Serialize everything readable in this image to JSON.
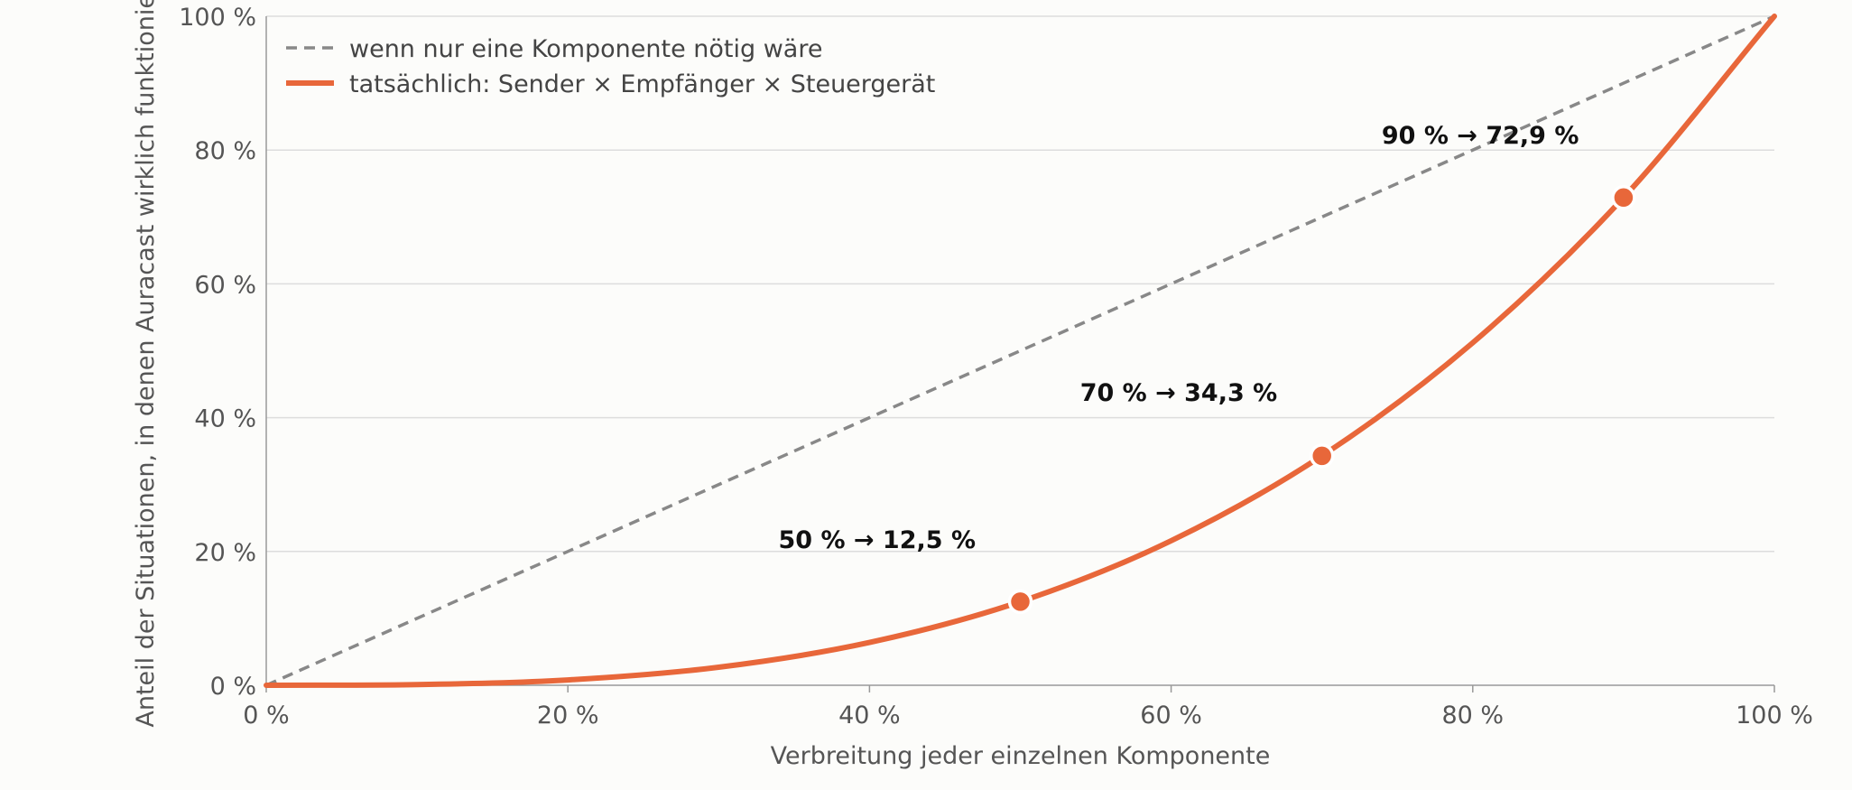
{
  "chart_data": {
    "type": "line",
    "title": "",
    "xlabel": "Verbreitung jeder einzelnen Komponente",
    "ylabel": "Anteil der Situationen, in denen Auracast wirklich funktioniert",
    "xlim": [
      0,
      100
    ],
    "ylim": [
      0,
      100
    ],
    "x_ticks": [
      0,
      20,
      40,
      60,
      80,
      100
    ],
    "y_ticks": [
      0,
      20,
      40,
      60,
      80,
      100
    ],
    "x_tick_labels": [
      "0 %",
      "20 %",
      "40 %",
      "60 %",
      "80 %",
      "100 %"
    ],
    "y_tick_labels": [
      "0 %",
      "20 %",
      "40 %",
      "60 %",
      "80 %",
      "100 %"
    ],
    "grid": "horizontal",
    "legend_position": "top-left",
    "series": [
      {
        "name": "wenn nur eine Komponente nötig wäre",
        "style": "dashed",
        "color": "#888888",
        "x": [
          0,
          100
        ],
        "y": [
          0,
          100
        ]
      },
      {
        "name": "tatsächlich: Sender × Empfänger × Steuergerät",
        "style": "solid",
        "color": "#e8673a",
        "x": [
          0,
          10,
          20,
          30,
          40,
          50,
          60,
          70,
          80,
          90,
          100
        ],
        "y": [
          0,
          0.1,
          0.8,
          2.7,
          6.4,
          12.5,
          21.6,
          34.3,
          51.2,
          72.9,
          100
        ]
      }
    ],
    "markers": [
      {
        "x": 50,
        "y": 12.5
      },
      {
        "x": 70,
        "y": 34.3
      },
      {
        "x": 90,
        "y": 72.9
      }
    ],
    "annotations": [
      {
        "text": "50 %  →  12,5 %",
        "x": 40.5,
        "y": 20.5
      },
      {
        "text": "70 %  →  34,3 %",
        "x": 60.5,
        "y": 42.5
      },
      {
        "text": "90 %  →  72,9 %",
        "x": 80.5,
        "y": 81
      }
    ]
  }
}
